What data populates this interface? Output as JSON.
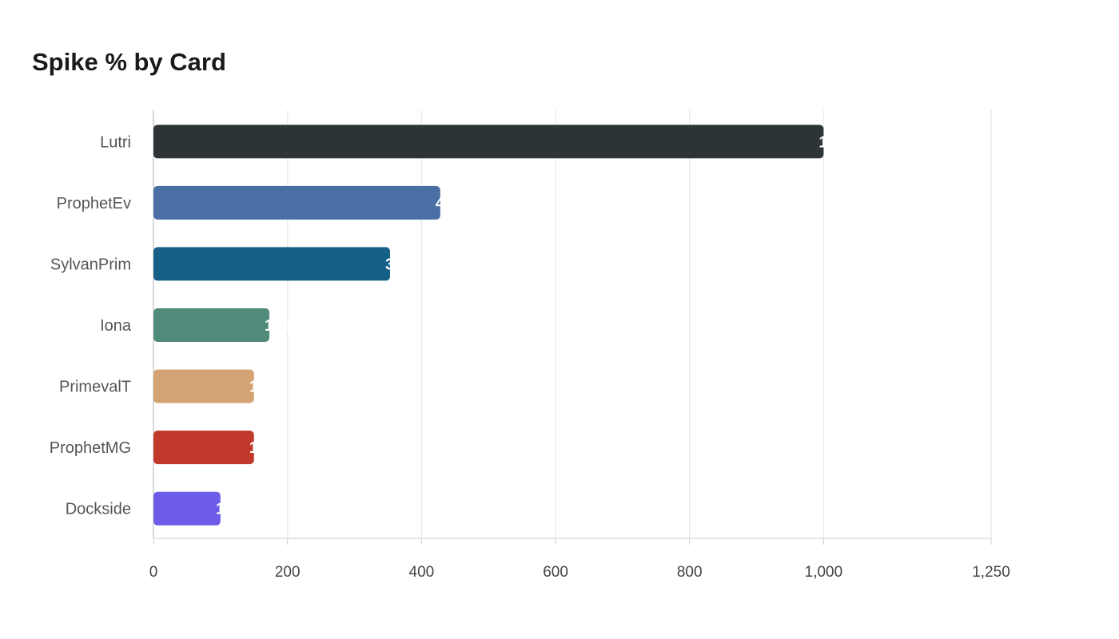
{
  "chart_data": {
    "type": "bar",
    "orientation": "horizontal",
    "title": "Spike % by Card",
    "xlabel": "",
    "ylabel": "",
    "xlim": [
      0,
      1250
    ],
    "xticks": [
      0,
      200,
      400,
      600,
      800,
      1000,
      1250
    ],
    "xtick_labels": [
      "0",
      "200",
      "400",
      "600",
      "800",
      "1,000",
      "1,250"
    ],
    "grid": true,
    "categories": [
      "Lutri",
      "ProphetEv",
      "SylvanPrim",
      "Iona",
      "PrimevalT",
      "ProphetMG",
      "Dockside"
    ],
    "values": [
      1000,
      428,
      353,
      173,
      150,
      150,
      100
    ],
    "colors": [
      "#2d3436",
      "#4a6fa5",
      "#166088",
      "#4f8a7a",
      "#d4a373",
      "#c0392b",
      "#6c5ce7"
    ]
  }
}
